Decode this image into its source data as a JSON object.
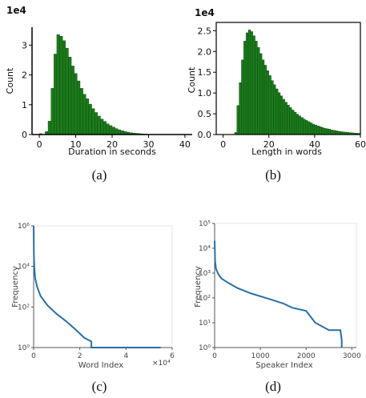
{
  "chart_data": [
    {
      "type": "bar",
      "panel": "(a)",
      "xlabel": "Duration in seconds",
      "ylabel": "Count",
      "y_multiplier": "1e4",
      "xlim": [
        -2,
        42
      ],
      "ylim": [
        0,
        3.6
      ],
      "xticks": [
        "0",
        "10",
        "20",
        "30",
        "40"
      ],
      "yticks": [
        "0",
        "1",
        "2",
        "3"
      ],
      "bin_width": 0.8,
      "x": [
        0.4,
        1.2,
        2.0,
        2.8,
        3.6,
        4.4,
        5.2,
        6.0,
        6.8,
        7.6,
        8.4,
        9.2,
        10.0,
        10.8,
        11.6,
        12.4,
        13.2,
        14.0,
        14.8,
        15.6,
        16.4,
        17.2,
        18.0,
        18.8,
        19.6,
        20.4,
        21.2,
        22.0,
        22.8,
        23.6,
        24.4,
        25.2,
        26.0,
        26.8,
        27.6,
        28.4,
        29.2,
        30.0,
        30.8,
        31.6,
        32.4,
        33.2
      ],
      "values": [
        0.03,
        0.0,
        0.1,
        0.45,
        1.55,
        2.7,
        3.35,
        3.3,
        3.15,
        2.9,
        2.6,
        2.3,
        2.05,
        1.8,
        1.55,
        1.35,
        1.2,
        1.02,
        0.87,
        0.74,
        0.62,
        0.52,
        0.44,
        0.36,
        0.3,
        0.25,
        0.2,
        0.16,
        0.13,
        0.1,
        0.08,
        0.06,
        0.05,
        0.04,
        0.03,
        0.02,
        0.015,
        0.01,
        0.008,
        0.005,
        0.003,
        0.002
      ]
    },
    {
      "type": "bar",
      "panel": "(b)",
      "xlabel": "Length in words",
      "ylabel": "Count",
      "y_multiplier": "1e4",
      "xlim": [
        -3,
        60
      ],
      "ylim": [
        0,
        2.7
      ],
      "xticks": [
        "0",
        "20",
        "40",
        "60"
      ],
      "yticks": [
        "0.0",
        "0.5",
        "1.0",
        "1.5",
        "2.0",
        "2.5"
      ],
      "bin_width": 1,
      "x": [
        5.5,
        6.5,
        7.5,
        8.5,
        9.5,
        10.5,
        11.5,
        12.5,
        13.5,
        14.5,
        15.5,
        16.5,
        17.5,
        18.5,
        19.5,
        20.5,
        21.5,
        22.5,
        23.5,
        24.5,
        25.5,
        26.5,
        27.5,
        28.5,
        29.5,
        30.5,
        31.5,
        32.5,
        33.5,
        34.5,
        35.5,
        36.5,
        37.5,
        38.5,
        39.5,
        40.5,
        41.5,
        42.5,
        43.5,
        44.5,
        45.5,
        46.5,
        47.5,
        48.5,
        49.5,
        50.5,
        51.5,
        52.5,
        53.5,
        54.5,
        55.5,
        56.5,
        57.5,
        58.5,
        59.5
      ],
      "values": [
        0.05,
        0.7,
        1.25,
        1.8,
        2.25,
        2.45,
        2.52,
        2.48,
        2.38,
        2.25,
        2.1,
        1.95,
        1.8,
        1.67,
        1.54,
        1.42,
        1.3,
        1.2,
        1.1,
        1.01,
        0.93,
        0.85,
        0.78,
        0.71,
        0.65,
        0.59,
        0.54,
        0.49,
        0.45,
        0.41,
        0.37,
        0.34,
        0.31,
        0.28,
        0.25,
        0.23,
        0.21,
        0.19,
        0.17,
        0.15,
        0.14,
        0.13,
        0.11,
        0.1,
        0.09,
        0.08,
        0.07,
        0.065,
        0.058,
        0.052,
        0.046,
        0.041,
        0.036,
        0.032,
        0.028
      ]
    },
    {
      "type": "line",
      "panel": "(c)",
      "xlabel": "Word Index",
      "ylabel": "Frequency",
      "x_multiplier": "×10⁴",
      "y_scale": "log",
      "xlim": [
        0,
        60000
      ],
      "ylim": [
        1,
        1000000
      ],
      "xticks": [
        "0",
        "2",
        "4",
        "6"
      ],
      "yticks": [
        "10⁰",
        "10²",
        "10⁴",
        "10⁶"
      ],
      "x": [
        0,
        100,
        300,
        700,
        1500,
        3000,
        6000,
        10000,
        14000,
        18000,
        22000,
        25000,
        25000,
        35000,
        45000,
        55000
      ],
      "y": [
        1000000,
        40000,
        8000,
        2500,
        1000,
        350,
        120,
        45,
        20,
        8,
        3,
        2,
        1,
        1,
        1,
        1
      ]
    },
    {
      "type": "line",
      "panel": "(d)",
      "xlabel": "Speaker Index",
      "ylabel": "Frequency",
      "y_scale": "log",
      "xlim": [
        0,
        3100
      ],
      "ylim": [
        1,
        100000
      ],
      "xticks": [
        "0",
        "1000",
        "2000",
        "3000"
      ],
      "yticks": [
        "10⁰",
        "10¹",
        "10²",
        "10³",
        "10⁴",
        "10⁵"
      ],
      "x": [
        0,
        10,
        30,
        80,
        150,
        300,
        500,
        800,
        1200,
        1500,
        1700,
        2000,
        2200,
        2500,
        2750,
        2780,
        2780
      ],
      "y": [
        20000,
        3000,
        1500,
        900,
        600,
        400,
        250,
        150,
        90,
        60,
        40,
        30,
        10,
        5,
        5,
        2,
        1
      ]
    }
  ],
  "captions": [
    "(a)",
    "(b)",
    "(c)",
    "(d)"
  ],
  "colors": {
    "bar_fill": "#1b7a1b",
    "bar_edge": "#0a3a0a",
    "line": "#2a6fa8"
  }
}
